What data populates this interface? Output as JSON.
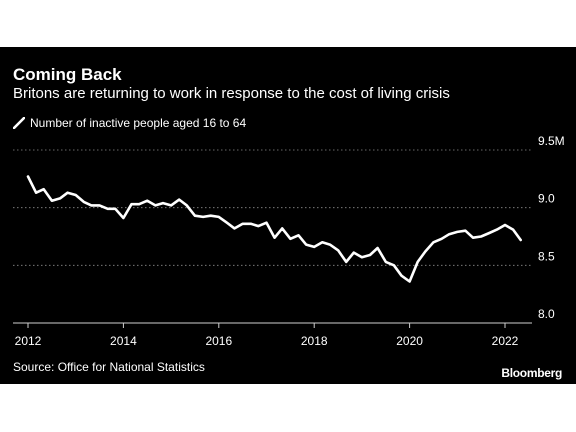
{
  "header": {
    "title": "Coming Back",
    "subtitle": "Britons are returning to work in response to the cost of living crisis"
  },
  "legend": {
    "label": "Number of inactive people aged 16 to 64",
    "icon": "line-swatch-icon"
  },
  "footer": {
    "source": "Source: Office for National Statistics",
    "brand": "Bloomberg"
  },
  "colors": {
    "background": "#000000",
    "line": "#ffffff",
    "grid": "#8c8c8c",
    "text": "#ffffff"
  },
  "chart_data": {
    "type": "line",
    "title": "Coming Back",
    "subtitle": "Britons are returning to work in response to the cost of living crisis",
    "xlabel": "",
    "ylabel": "",
    "xlim": [
      2012,
      2022.9
    ],
    "ylim": [
      8.0,
      9.5
    ],
    "x_ticks": [
      2012,
      2014,
      2016,
      2018,
      2020,
      2022
    ],
    "y_ticks": [
      {
        "value": 9.5,
        "label": "9.5M"
      },
      {
        "value": 9.0,
        "label": "9.0"
      },
      {
        "value": 8.5,
        "label": "8.5"
      },
      {
        "value": 8.0,
        "label": "8.0"
      }
    ],
    "grid": "horizontal dotted",
    "y_axis_side": "right",
    "legend_position": "top-left",
    "series": [
      {
        "name": "Number of inactive people aged 16 to 64",
        "x": [
          2012.0,
          2012.17,
          2012.33,
          2012.5,
          2012.67,
          2012.83,
          2013.0,
          2013.17,
          2013.33,
          2013.5,
          2013.67,
          2013.83,
          2014.0,
          2014.17,
          2014.33,
          2014.5,
          2014.67,
          2014.83,
          2015.0,
          2015.17,
          2015.33,
          2015.5,
          2015.67,
          2015.83,
          2016.0,
          2016.17,
          2016.33,
          2016.5,
          2016.67,
          2016.83,
          2017.0,
          2017.17,
          2017.33,
          2017.5,
          2017.67,
          2017.83,
          2018.0,
          2018.17,
          2018.33,
          2018.5,
          2018.67,
          2018.83,
          2019.0,
          2019.17,
          2019.33,
          2019.5,
          2019.67,
          2019.83,
          2020.0,
          2020.17,
          2020.33,
          2020.5,
          2020.67,
          2020.83,
          2021.0,
          2021.17,
          2021.33,
          2021.5,
          2021.67,
          2021.83,
          2022.0,
          2022.17,
          2022.33
        ],
        "values": [
          9.27,
          9.13,
          9.16,
          9.06,
          9.08,
          9.13,
          9.11,
          9.05,
          9.02,
          9.02,
          8.99,
          8.99,
          8.91,
          9.03,
          9.03,
          9.06,
          9.02,
          9.04,
          9.02,
          9.07,
          9.02,
          8.93,
          8.92,
          8.93,
          8.92,
          8.87,
          8.82,
          8.86,
          8.86,
          8.84,
          8.87,
          8.74,
          8.82,
          8.73,
          8.76,
          8.68,
          8.66,
          8.7,
          8.68,
          8.63,
          8.53,
          8.61,
          8.57,
          8.59,
          8.65,
          8.53,
          8.5,
          8.41,
          8.36,
          8.53,
          8.62,
          8.7,
          8.73,
          8.77,
          8.79,
          8.8,
          8.74,
          8.75,
          8.78,
          8.81,
          8.85,
          8.81,
          8.72
        ]
      }
    ]
  }
}
